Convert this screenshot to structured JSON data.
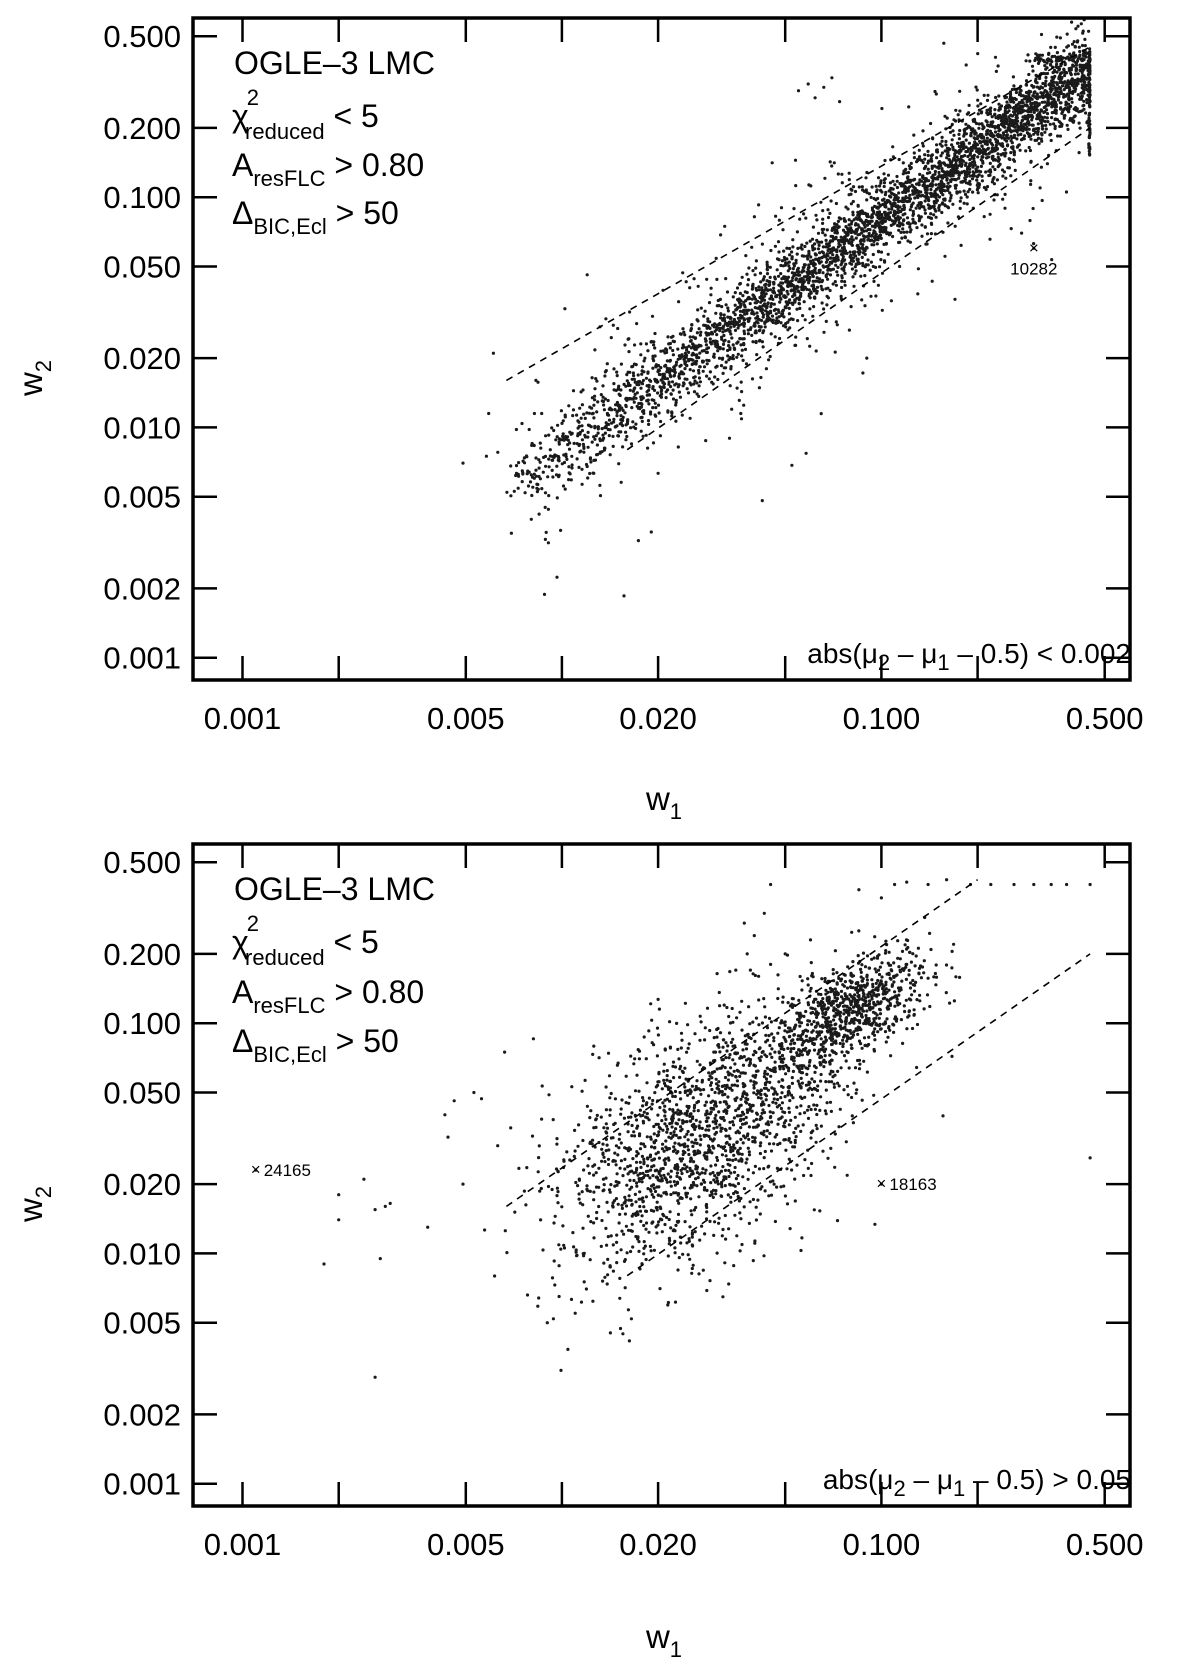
{
  "chart_data": [
    {
      "type": "scatter",
      "xlabel": "w",
      "xlabel_sub": "1",
      "ylabel": "w",
      "ylabel_sub": "2",
      "xscale": "log",
      "yscale": "log",
      "xlim": [
        0.0007,
        0.6
      ],
      "ylim": [
        0.0008,
        0.6
      ],
      "x_ticks": [
        0.001,
        0.002,
        0.005,
        0.01,
        0.02,
        0.05,
        0.1,
        0.2,
        0.5
      ],
      "x_tick_labels": [
        {
          "value": 0.001,
          "label": "0.001"
        },
        {
          "value": 0.005,
          "label": "0.005"
        },
        {
          "value": 0.02,
          "label": "0.020"
        },
        {
          "value": 0.1,
          "label": "0.100"
        },
        {
          "value": 0.5,
          "label": "0.500"
        }
      ],
      "y_ticks": [
        {
          "value": 0.5,
          "label": "0.500"
        },
        {
          "value": 0.2,
          "label": "0.200"
        },
        {
          "value": 0.1,
          "label": "0.100"
        },
        {
          "value": 0.05,
          "label": "0.050"
        },
        {
          "value": 0.02,
          "label": "0.020"
        },
        {
          "value": 0.01,
          "label": "0.010"
        },
        {
          "value": 0.005,
          "label": "0.005"
        },
        {
          "value": 0.002,
          "label": "0.002"
        },
        {
          "value": 0.001,
          "label": "0.001"
        }
      ],
      "annotations": {
        "title": "OGLE–3 LMC",
        "chi": {
          "base": "χ",
          "sup": "2",
          "sub": "reduced",
          "rest": " < 5"
        },
        "ares": {
          "base": "A",
          "sub": "resFLC",
          "rest": " > 0.80"
        },
        "dbic": {
          "base": "Δ",
          "sub": "BIC,Ecl",
          "rest": " > 50"
        },
        "condition": {
          "pre": "abs(μ",
          "s1": "2",
          "mid": " – μ",
          "s2": "1",
          "post": " – 0.5) < 0.002"
        }
      },
      "guide_lines": [
        {
          "from": [
            0.0067,
            0.016
          ],
          "to": [
            0.45,
            0.45
          ]
        },
        {
          "from": [
            0.016,
            0.008
          ],
          "to": [
            0.45,
            0.2
          ]
        }
      ],
      "labeled_points": [
        {
          "label": "10282",
          "x": 0.3,
          "y": 0.06
        }
      ],
      "point_groups": [
        {
          "kind": "band",
          "count": 3400,
          "x_range": [
            0.0067,
            0.45
          ],
          "y_ratio": 0.8,
          "scatter_dex": 0.09,
          "x_bias": 1.6
        },
        {
          "kind": "band",
          "count": 450,
          "x_range": [
            0.008,
            0.45
          ],
          "y_ratio": 0.8,
          "scatter_dex": 0.24,
          "x_bias": 1.2
        },
        {
          "kind": "column",
          "count": 70,
          "x": 0.45,
          "y_range": [
            0.15,
            0.45
          ]
        },
        {
          "kind": "row",
          "count": 55,
          "y": 0.4,
          "x_range": [
            0.3,
            0.45
          ]
        }
      ],
      "points": [
        [
          0.0049,
          0.007
        ],
        [
          0.0058,
          0.0075
        ],
        [
          0.0063,
          0.0078
        ],
        [
          0.0059,
          0.0115
        ],
        [
          0.0061,
          0.021
        ],
        [
          0.0072,
          0.0098
        ],
        [
          0.0075,
          0.0104
        ],
        [
          0.0079,
          0.0098
        ],
        [
          0.0082,
          0.0115
        ],
        [
          0.012,
          0.046
        ],
        [
          0.055,
          0.29
        ],
        [
          0.059,
          0.31
        ],
        [
          0.062,
          0.27
        ],
        [
          0.066,
          0.3
        ],
        [
          0.07,
          0.33
        ],
        [
          0.074,
          0.26
        ],
        [
          0.13,
          0.038
        ],
        [
          0.17,
          0.036
        ],
        [
          0.09,
          0.02
        ],
        [
          0.034,
          0.012
        ],
        [
          0.3,
          0.06
        ]
      ]
    },
    {
      "type": "scatter",
      "xlabel": "w",
      "xlabel_sub": "1",
      "ylabel": "w",
      "ylabel_sub": "2",
      "xscale": "log",
      "yscale": "log",
      "xlim": [
        0.0007,
        0.6
      ],
      "ylim": [
        0.0008,
        0.6
      ],
      "x_ticks": [
        0.001,
        0.002,
        0.005,
        0.01,
        0.02,
        0.05,
        0.1,
        0.2,
        0.5
      ],
      "x_tick_labels": [
        {
          "value": 0.001,
          "label": "0.001"
        },
        {
          "value": 0.005,
          "label": "0.005"
        },
        {
          "value": 0.02,
          "label": "0.020"
        },
        {
          "value": 0.1,
          "label": "0.100"
        },
        {
          "value": 0.5,
          "label": "0.500"
        }
      ],
      "y_ticks": [
        {
          "value": 0.5,
          "label": "0.500"
        },
        {
          "value": 0.2,
          "label": "0.200"
        },
        {
          "value": 0.1,
          "label": "0.100"
        },
        {
          "value": 0.05,
          "label": "0.050"
        },
        {
          "value": 0.02,
          "label": "0.020"
        },
        {
          "value": 0.01,
          "label": "0.010"
        },
        {
          "value": 0.005,
          "label": "0.005"
        },
        {
          "value": 0.002,
          "label": "0.002"
        },
        {
          "value": 0.001,
          "label": "0.001"
        }
      ],
      "annotations": {
        "title": "OGLE–3 LMC",
        "chi": {
          "base": "χ",
          "sup": "2",
          "sub": "reduced",
          "rest": " < 5"
        },
        "ares": {
          "base": "A",
          "sub": "resFLC",
          "rest": " > 0.80"
        },
        "dbic": {
          "base": "Δ",
          "sub": "BIC,Ecl",
          "rest": " > 50"
        },
        "condition": {
          "pre": "abs(μ",
          "s1": "2",
          "mid": " – μ",
          "s2": "1",
          "post": " – 0.5) > 0.05"
        }
      },
      "guide_lines": [
        {
          "from": [
            0.0067,
            0.016
          ],
          "to": [
            0.2,
            0.42
          ]
        },
        {
          "from": [
            0.016,
            0.008
          ],
          "to": [
            0.45,
            0.2
          ]
        }
      ],
      "labeled_points": [
        {
          "label": "24165",
          "x": 0.0011,
          "y": 0.023
        },
        {
          "label": "18163",
          "x": 0.1,
          "y": 0.02
        }
      ],
      "point_groups": [
        {
          "kind": "cloud",
          "count": 1500,
          "center": [
            0.025,
            0.03
          ],
          "spread_dex": [
            0.22,
            0.26
          ],
          "tilt": 0.6
        },
        {
          "kind": "cloud",
          "count": 650,
          "center": [
            0.085,
            0.12
          ],
          "spread_dex": [
            0.11,
            0.1
          ],
          "tilt": 0.5
        },
        {
          "kind": "cloud",
          "count": 400,
          "center": [
            0.055,
            0.07
          ],
          "spread_dex": [
            0.15,
            0.17
          ],
          "tilt": 0.7
        }
      ],
      "points": [
        [
          0.0018,
          0.009
        ],
        [
          0.002,
          0.014
        ],
        [
          0.002,
          0.018
        ],
        [
          0.0024,
          0.021
        ],
        [
          0.0026,
          0.0155
        ],
        [
          0.0028,
          0.016
        ],
        [
          0.0029,
          0.0165
        ],
        [
          0.0027,
          0.0095
        ],
        [
          0.0026,
          0.0029
        ],
        [
          0.0038,
          0.013
        ],
        [
          0.0043,
          0.04
        ],
        [
          0.0046,
          0.046
        ],
        [
          0.0049,
          0.02
        ],
        [
          0.0044,
          0.032
        ],
        [
          0.0053,
          0.05
        ],
        [
          0.0056,
          0.047
        ],
        [
          0.0078,
          0.0066
        ],
        [
          0.0084,
          0.0059
        ],
        [
          0.009,
          0.005
        ],
        [
          0.0094,
          0.0052
        ],
        [
          0.0098,
          0.0065
        ],
        [
          0.011,
          0.0055
        ],
        [
          0.0165,
          0.0052
        ],
        [
          0.0125,
          0.0062
        ],
        [
          0.19,
          0.4
        ],
        [
          0.22,
          0.4
        ],
        [
          0.26,
          0.4
        ],
        [
          0.3,
          0.4
        ],
        [
          0.34,
          0.4
        ],
        [
          0.38,
          0.4
        ],
        [
          0.45,
          0.4
        ],
        [
          0.11,
          0.4
        ],
        [
          0.1,
          0.35
        ],
        [
          0.085,
          0.38
        ],
        [
          0.12,
          0.41
        ],
        [
          0.14,
          0.4
        ],
        [
          0.16,
          0.42
        ],
        [
          0.045,
          0.4
        ],
        [
          0.043,
          0.3
        ],
        [
          0.04,
          0.24
        ],
        [
          0.038,
          0.2
        ],
        [
          0.035,
          0.17
        ],
        [
          0.045,
          0.18
        ],
        [
          0.05,
          0.2
        ],
        [
          0.06,
          0.23
        ],
        [
          0.45,
          0.026
        ],
        [
          0.1,
          0.02
        ],
        [
          0.0011,
          0.023
        ]
      ]
    }
  ]
}
